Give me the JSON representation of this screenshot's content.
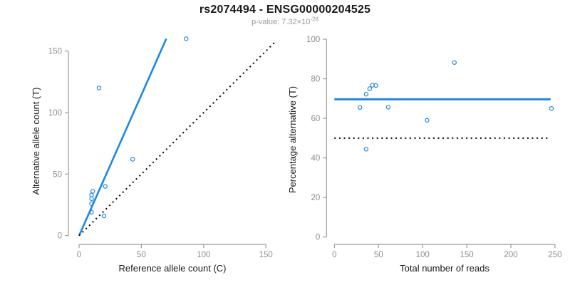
{
  "figure": {
    "title": "rs2074494 - ENSG00000204525",
    "pvalue_label": "p-value: 7.32×10",
    "pvalue_exponent": "-28"
  },
  "colors": {
    "accent_blue": "#1e87e5",
    "reference_black": "#000000",
    "axis_gray": "#9b9b9b",
    "tick_label_gray": "#8c8c8c",
    "axis_title_black": "#1a1a1a"
  },
  "chart_data": [
    {
      "type": "scatter",
      "name": "allele-count-scatter",
      "xlabel": "Reference allele count (C)",
      "ylabel": "Alternative allele count (T)",
      "xlim": [
        0,
        158
      ],
      "ylim": [
        0,
        160
      ],
      "xticks": [
        0,
        50,
        100,
        150
      ],
      "yticks": [
        0,
        50,
        100,
        150
      ],
      "grid": false,
      "legend": "none",
      "points": [
        {
          "x": 16,
          "y": 120
        },
        {
          "x": 43,
          "y": 62
        },
        {
          "x": 21,
          "y": 40
        },
        {
          "x": 11,
          "y": 36
        },
        {
          "x": 10,
          "y": 33
        },
        {
          "x": 10,
          "y": 30
        },
        {
          "x": 10,
          "y": 26
        },
        {
          "x": 10,
          "y": 19
        },
        {
          "x": 20,
          "y": 16
        },
        {
          "x": 86,
          "y": 160
        }
      ],
      "lines": [
        {
          "name": "fit-line",
          "style": "solid",
          "color_key": "accent_blue",
          "width": 2.6,
          "from": [
            0,
            0
          ],
          "to": [
            70,
            160
          ]
        },
        {
          "name": "identity-line",
          "style": "dotted",
          "color_key": "reference_black",
          "width": 2,
          "from": [
            0,
            0
          ],
          "to": [
            158,
            158
          ]
        }
      ]
    },
    {
      "type": "scatter",
      "name": "percentage-alternative-scatter",
      "xlabel": "Total number of reads",
      "ylabel": "Percentage alternative (T)",
      "xlim": [
        0,
        250
      ],
      "ylim": [
        0,
        100
      ],
      "xticks": [
        0,
        50,
        100,
        150,
        200,
        250
      ],
      "yticks": [
        0,
        20,
        40,
        60,
        80,
        100
      ],
      "grid": false,
      "legend": "none",
      "points": [
        {
          "x": 136,
          "y": 88.2
        },
        {
          "x": 105,
          "y": 59.0
        },
        {
          "x": 61,
          "y": 65.6
        },
        {
          "x": 47,
          "y": 76.6
        },
        {
          "x": 43,
          "y": 76.7
        },
        {
          "x": 40,
          "y": 75.0
        },
        {
          "x": 36,
          "y": 72.2
        },
        {
          "x": 29,
          "y": 65.5
        },
        {
          "x": 36,
          "y": 44.4
        },
        {
          "x": 246,
          "y": 65.0
        }
      ],
      "lines": [
        {
          "name": "mean-percentage-line",
          "style": "solid",
          "color_key": "accent_blue",
          "width": 3,
          "from": [
            0,
            69.6
          ],
          "to": [
            245,
            69.6
          ]
        },
        {
          "name": "fifty-percent-line",
          "style": "dotted",
          "color_key": "reference_black",
          "width": 2,
          "from": [
            0,
            50
          ],
          "to": [
            245,
            50
          ]
        }
      ]
    }
  ]
}
